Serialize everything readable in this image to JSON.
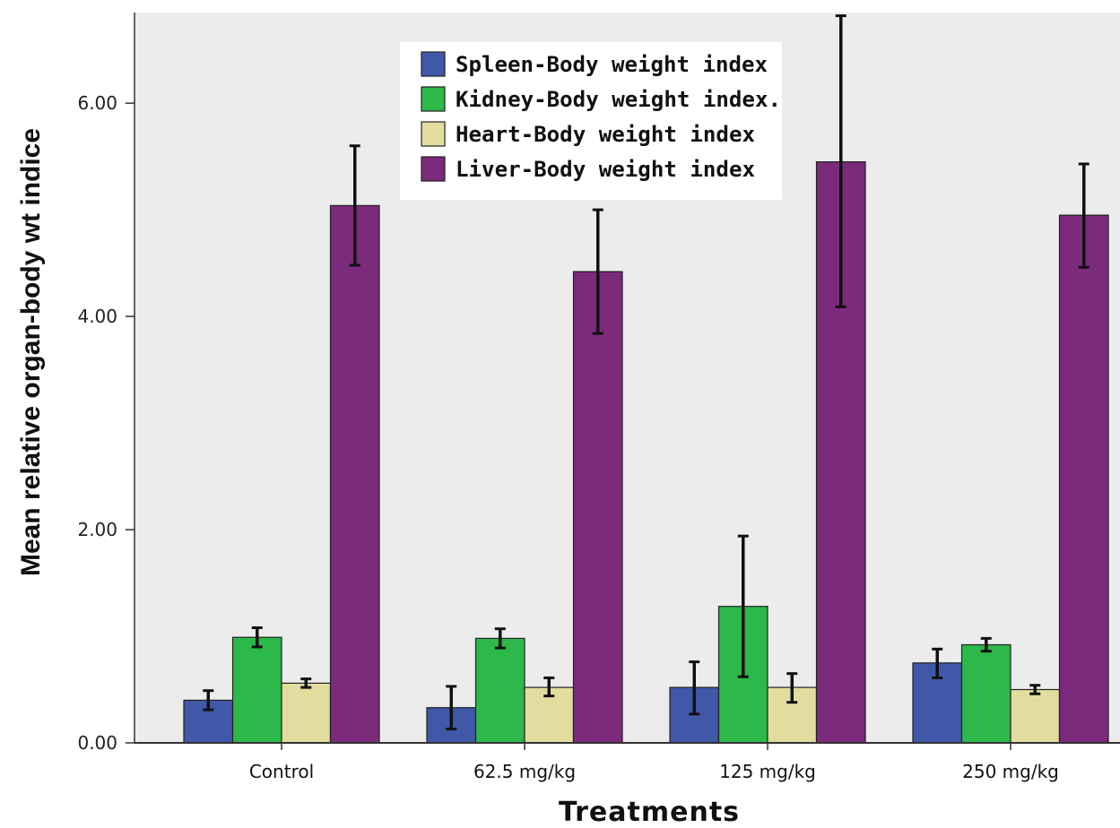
{
  "chart_data": {
    "type": "bar",
    "categories": [
      "Control",
      "62.5 mg/kg",
      "125 mg/kg",
      "250 mg/kg"
    ],
    "series": [
      {
        "name": "Spleen-Body weight index",
        "color": "#3f58a8",
        "values": [
          0.4,
          0.33,
          0.52,
          0.75
        ],
        "err_low": [
          0.31,
          0.13,
          0.27,
          0.61
        ],
        "err_high": [
          0.49,
          0.53,
          0.76,
          0.88
        ]
      },
      {
        "name": "Kidney-Body weight index.",
        "color": "#2db84a",
        "values": [
          0.99,
          0.98,
          1.28,
          0.92
        ],
        "err_low": [
          0.9,
          0.89,
          0.62,
          0.86
        ],
        "err_high": [
          1.08,
          1.07,
          1.94,
          0.98
        ]
      },
      {
        "name": "Heart-Body weight index",
        "color": "#e2dd9f",
        "values": [
          0.56,
          0.52,
          0.52,
          0.5
        ],
        "err_low": [
          0.52,
          0.44,
          0.38,
          0.46
        ],
        "err_high": [
          0.6,
          0.61,
          0.65,
          0.54
        ]
      },
      {
        "name": "Liver-Body weight index",
        "color": "#7b2a7c",
        "values": [
          5.04,
          4.42,
          5.45,
          4.95
        ],
        "err_low": [
          4.48,
          3.84,
          4.09,
          4.46
        ],
        "err_high": [
          5.6,
          5.0,
          6.82,
          5.43
        ]
      }
    ],
    "yticks": [
      "0.00",
      "2.00",
      "4.00",
      "6.00"
    ],
    "ytick_values": [
      0,
      2,
      4,
      6
    ],
    "ylim": [
      0,
      6.85
    ],
    "xlabel": "Treatments",
    "ylabel": "Mean relative organ-body wt indice",
    "legend_position": "top-left",
    "grid": false,
    "plot_background": "#ececec"
  }
}
